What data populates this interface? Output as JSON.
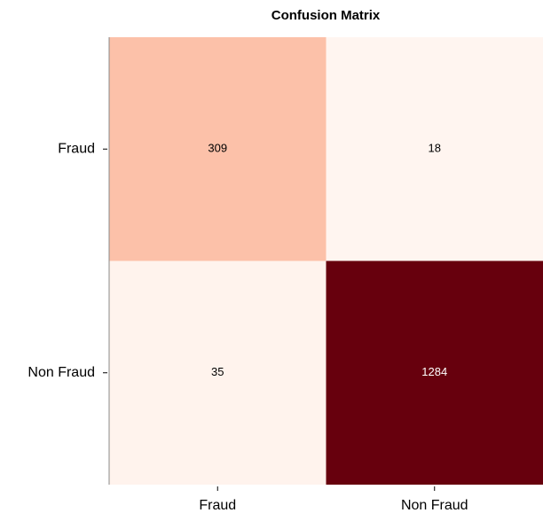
{
  "chart_data": {
    "type": "heatmap",
    "title": "Confusion Matrix",
    "rows": [
      "Fraud",
      "Non Fraud"
    ],
    "columns": [
      "Fraud",
      "Non Fraud"
    ],
    "values": [
      [
        309,
        18
      ],
      [
        35,
        1284
      ]
    ],
    "colormap": [
      "#fff5f0",
      "#fee0d2",
      "#fcbba1",
      "#fc9272",
      "#fb6a4a",
      "#ef3b2c",
      "#cb181d",
      "#a50f15",
      "#67000d"
    ]
  }
}
